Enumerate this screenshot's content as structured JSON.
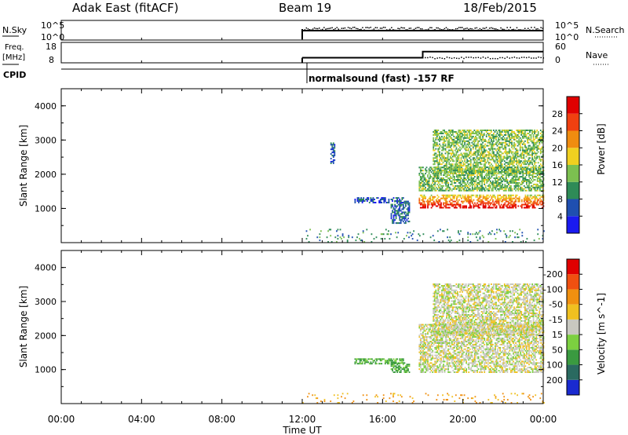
{
  "header": {
    "station": "Adak East (fitACF)",
    "beam": "Beam 19",
    "date": "18/Feb/2015"
  },
  "nsky_panel": {
    "left_label": "N.Sky",
    "right_label": "N.Search",
    "left_ticks": [
      "10^5",
      "10^0"
    ],
    "right_ticks": [
      "10^5",
      "10^0"
    ]
  },
  "freq_panel": {
    "left_label_1": "Freq.",
    "left_label_2": "[MHz]",
    "right_label": "Nave",
    "left_ticks": [
      "18",
      "8"
    ],
    "right_ticks": [
      "60",
      "0"
    ]
  },
  "cpid": {
    "label": "CPID",
    "program": "normalsound (fast) -157 RF"
  },
  "power_panel": {
    "ylabel": "Slant Range [km]",
    "yticks": [
      "1000",
      "2000",
      "3000",
      "4000"
    ],
    "colorbar_label": "Power [dB]",
    "colorbar_ticks": [
      "4",
      "8",
      "12",
      "16",
      "20",
      "24",
      "28"
    ],
    "colors": [
      "#1a1af0",
      "#1f4fb0",
      "#2e8b57",
      "#7cc050",
      "#f0d020",
      "#f08c10",
      "#f04010",
      "#e00000"
    ]
  },
  "velocity_panel": {
    "ylabel": "Slant Range [km]",
    "yticks": [
      "1000",
      "2000",
      "3000",
      "4000"
    ],
    "colorbar_label": "Velocity [m s^-1]",
    "colorbar_ticks": [
      "200",
      "100",
      "50",
      "15",
      "-15",
      "-50",
      "-100",
      "-200"
    ],
    "colors": [
      "#1a2ad0",
      "#2a6a60",
      "#3a9a40",
      "#7cd040",
      "#c8c8c0",
      "#f0c020",
      "#f09010",
      "#f05010",
      "#e00000"
    ]
  },
  "xaxis": {
    "label": "Time UT",
    "ticks": [
      "00:00",
      "04:00",
      "08:00",
      "12:00",
      "16:00",
      "20:00",
      "00:00"
    ]
  },
  "chart_data": [
    {
      "type": "heatmap",
      "title": "Power",
      "xlabel": "Time UT",
      "ylabel": "Slant Range [km]",
      "x_range_hours": [
        0,
        24
      ],
      "ylim": [
        0,
        4500
      ],
      "zlabel": "Power [dB]",
      "zlim": [
        0,
        32
      ],
      "regions": [
        {
          "t": [
            13.4,
            13.6
          ],
          "r": [
            2300,
            2900
          ],
          "z": 6
        },
        {
          "t": [
            14.6,
            17.0
          ],
          "r": [
            1150,
            1300
          ],
          "z": 6
        },
        {
          "t": [
            16.4,
            17.3
          ],
          "r": [
            550,
            1200
          ],
          "z": 7
        },
        {
          "t": [
            17.8,
            24.0
          ],
          "r": [
            1000,
            1400
          ],
          "z": 24
        },
        {
          "t": [
            17.8,
            24.0
          ],
          "r": [
            1500,
            2200
          ],
          "z": 13
        },
        {
          "t": [
            18.5,
            24.0
          ],
          "r": [
            2000,
            3300
          ],
          "z": 14
        },
        {
          "t": [
            12.0,
            24.0
          ],
          "r": [
            0,
            400
          ],
          "z": 10
        }
      ]
    },
    {
      "type": "heatmap",
      "title": "Velocity",
      "xlabel": "Time UT",
      "ylabel": "Slant Range [km]",
      "x_range_hours": [
        0,
        24
      ],
      "ylim": [
        0,
        4500
      ],
      "zlabel": "Velocity [m s^-1]",
      "zlim": [
        -200,
        200
      ],
      "regions": [
        {
          "t": [
            14.6,
            17.0
          ],
          "r": [
            1150,
            1300
          ],
          "z": 50
        },
        {
          "t": [
            16.4,
            17.3
          ],
          "r": [
            900,
            1200
          ],
          "z": 60
        },
        {
          "t": [
            17.8,
            24.0
          ],
          "r": [
            900,
            2300
          ],
          "z": 0
        },
        {
          "t": [
            18.5,
            24.0
          ],
          "r": [
            2000,
            3500
          ],
          "z": 0
        },
        {
          "t": [
            12.0,
            24.0
          ],
          "r": [
            0,
            300
          ],
          "z": -60
        }
      ]
    },
    {
      "type": "line",
      "title": "Freq.",
      "x_hours": [
        12.0,
        18.0,
        18.0,
        24.0
      ],
      "freq_mhz": [
        10.5,
        10.5,
        13.5,
        13.5
      ],
      "ylim": [
        8,
        18
      ]
    }
  ]
}
